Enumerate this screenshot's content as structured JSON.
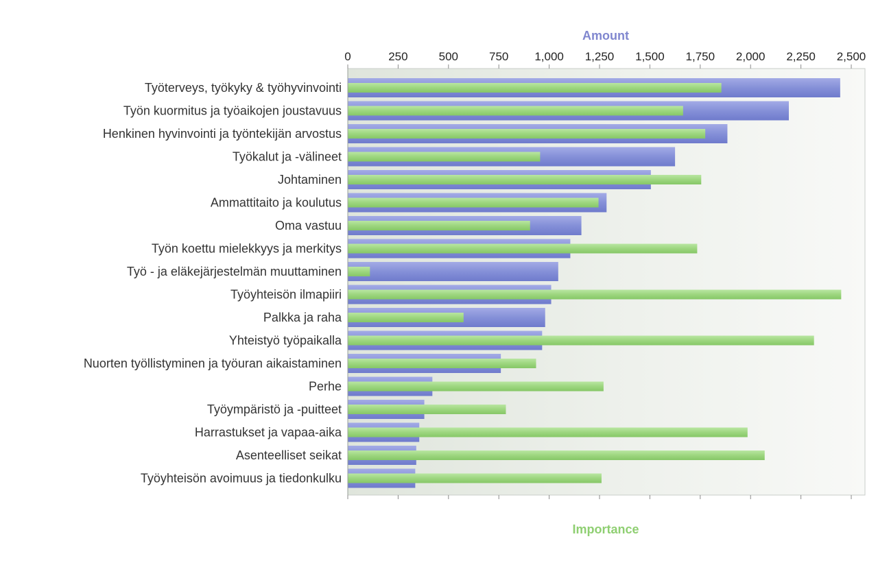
{
  "chart_data": {
    "type": "bar",
    "orientation": "horizontal",
    "top_axis_title": "Amount",
    "bottom_axis_title": "Importance",
    "top_axis_ticks": [
      "0",
      "250",
      "500",
      "750",
      "1,000",
      "1,250",
      "1,500",
      "1,750",
      "2,000",
      "2,250",
      "2,500"
    ],
    "xlim": [
      0,
      2560
    ],
    "grid": false,
    "categories": [
      "Työterveys, työkyky & työhyvinvointi",
      "Työn kuormitus ja työaikojen joustavuus",
      "Henkinen hyvinvointi ja työntekijän arvostus",
      "Työkalut ja -välineet",
      "Johtaminen",
      "Ammattitaito ja koulutus",
      "Oma vastuu",
      "Työn koettu mielekkyys ja merkitys",
      "Työ - ja eläkejärjestelmän muuttaminen",
      "Työyhteisön ilmapiiri",
      "Palkka ja raha",
      "Yhteistyö työpaikalla",
      "Nuorten työllistyminen ja työuran aikaistaminen",
      "Perhe",
      "Työympäristö ja -puitteet",
      "Harrastukset ja vapaa-aika",
      "Asenteelliset seikat",
      "Työyhteisön avoimuus ja tiedonkulku"
    ],
    "series": [
      {
        "name": "Amount",
        "color": "#8893d8",
        "values": [
          2445,
          2190,
          1885,
          1625,
          1505,
          1285,
          1160,
          1105,
          1045,
          1010,
          980,
          965,
          760,
          420,
          380,
          355,
          340,
          335
        ]
      },
      {
        "name": "Importance",
        "color": "#9ed67f",
        "values": [
          1855,
          1665,
          1775,
          955,
          1755,
          1245,
          905,
          1735,
          110,
          2450,
          575,
          2315,
          935,
          1270,
          785,
          1985,
          2070,
          1260
        ]
      }
    ]
  }
}
